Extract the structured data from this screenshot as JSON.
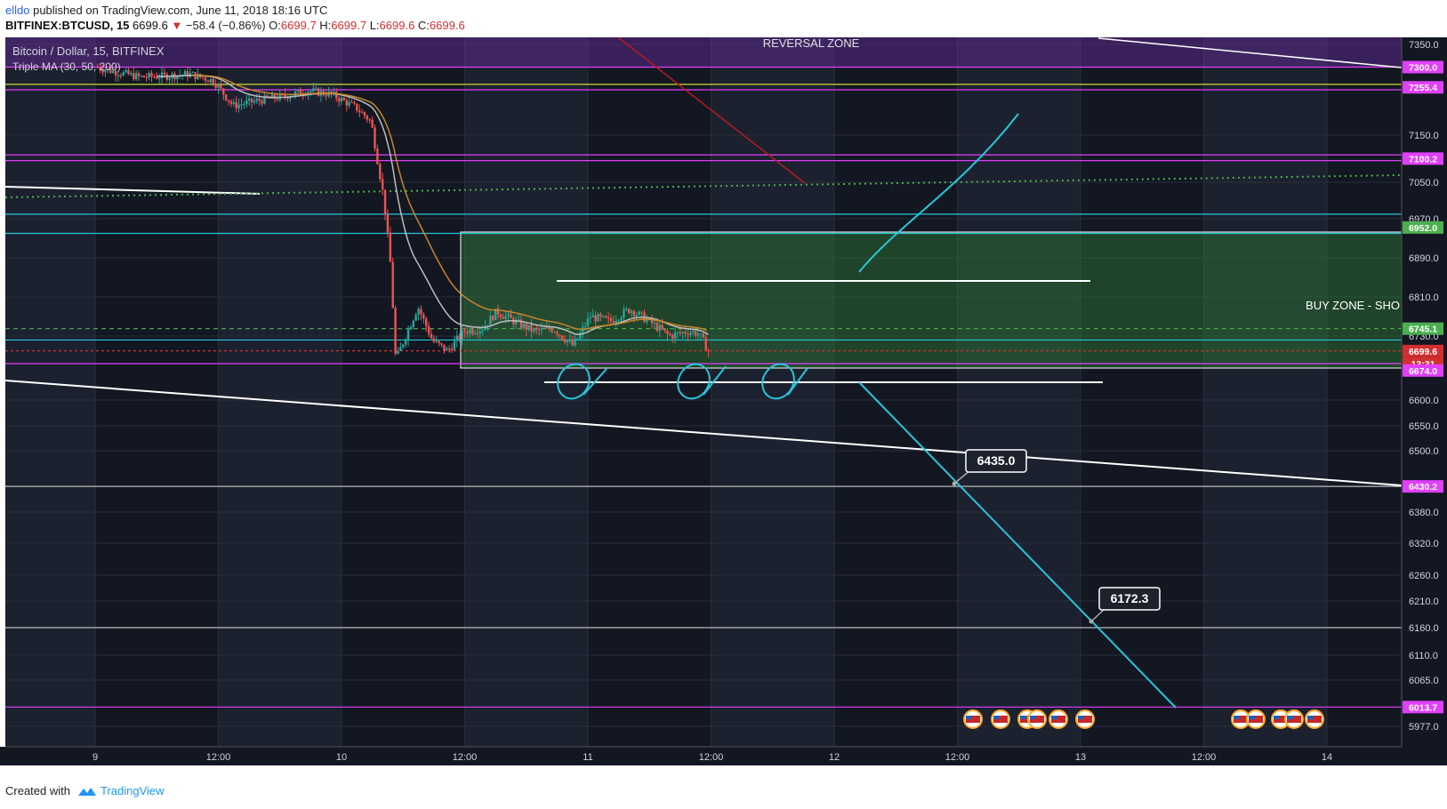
{
  "header": {
    "author": "elldo",
    "published_text": "published on TradingView.com, June 11, 2018 18:16 UTC",
    "symbol": "BITFINEX:BTCUSD, 15",
    "last": "6699.6",
    "change": "−58.4 (−0.86%)",
    "o_label": "O:",
    "o": "6699.7",
    "h_label": "H:",
    "h": "6699.7",
    "l_label": "L:",
    "l": "6699.6",
    "c_label": "C:",
    "c": "6699.6"
  },
  "legend": {
    "title": "Bitcoin / Dollar, 15, BITFINEX",
    "indicator": "Triple MA (30, 50, 200)"
  },
  "footer": {
    "created_with": "Created with",
    "brand": "TradingView"
  },
  "colors": {
    "background": "#131722",
    "bull": "#26a69a",
    "bear": "#ef5350",
    "accent_magenta": "#e040fb",
    "accent_cyan": "#26c6da",
    "accent_green": "#1b5e20",
    "accent_red": "#d32f2f"
  },
  "chart_data": {
    "type": "candlestick",
    "title": "Bitcoin / Dollar, 15, BITFINEX",
    "x_ticks": [
      "9",
      "12:00",
      "10",
      "12:00",
      "11",
      "12:00",
      "12",
      "12:00",
      "13",
      "12:00",
      "14"
    ],
    "y_ticks": [
      7350,
      7150,
      7050,
      6970,
      6890,
      6810,
      6730,
      6600,
      6550,
      6500,
      6380,
      6320,
      6260,
      6210,
      6160,
      6110,
      6065,
      5977
    ],
    "y_range": [
      5960,
      7380
    ],
    "grid": true,
    "price_tags": [
      {
        "value": "7300.0",
        "price": 7300,
        "color": "#e040fb"
      },
      {
        "value": "7255.4",
        "price": 7255.4,
        "color": "#e040fb"
      },
      {
        "value": "7100.2",
        "price": 7100.2,
        "color": "#e040fb"
      },
      {
        "value": "6952.0",
        "price": 6952,
        "color": "#4caf50"
      },
      {
        "value": "6745.1",
        "price": 6745.1,
        "color": "#4caf50"
      },
      {
        "value": "6699.6",
        "price": 6699.6,
        "color": "#d32f2f"
      },
      {
        "value": "13:31",
        "price": 6674,
        "color": "#d32f2f"
      },
      {
        "value": "6674.0",
        "price": 6660,
        "color": "#e040fb"
      },
      {
        "value": "6430.2",
        "price": 6430.2,
        "color": "#e040fb"
      },
      {
        "value": "6013.7",
        "price": 6013.7,
        "color": "#e040fb"
      }
    ],
    "horizontal_levels": [
      {
        "price": 7300,
        "color": "#e040fb"
      },
      {
        "price": 7262,
        "color": "#cddc39"
      },
      {
        "price": 7250,
        "color": "#e040fb"
      },
      {
        "price": 7108,
        "color": "#e040fb"
      },
      {
        "price": 7096,
        "color": "#e040fb"
      },
      {
        "price": 6980,
        "color": "#26c6da"
      },
      {
        "price": 6940,
        "color": "#26c6da"
      },
      {
        "price": 6745.1,
        "color": "#4caf50"
      },
      {
        "price": 6722,
        "color": "#26c6da"
      },
      {
        "price": 6700,
        "color": "#d32f2f"
      },
      {
        "price": 6674,
        "color": "#e040fb"
      },
      {
        "price": 6430.2,
        "color": "#bbbbbb"
      },
      {
        "price": 6160,
        "color": "#bbbbbb"
      },
      {
        "price": 6013.7,
        "color": "#e040fb"
      }
    ],
    "zones": [
      {
        "label": "REVERSAL ZONE",
        "from_price": 7380,
        "to_price": 7300
      },
      {
        "label": "BUY ZONE - SHO",
        "from_price": 6952,
        "to_price": 6674
      }
    ],
    "callouts": [
      {
        "label": "6435.0",
        "price": 6435.0
      },
      {
        "label": "6172.3",
        "price": 6172.3
      }
    ],
    "price_path": [
      [
        0,
        7300
      ],
      [
        0.08,
        7290
      ],
      [
        0.18,
        7278
      ],
      [
        0.28,
        7280
      ],
      [
        0.38,
        7285
      ],
      [
        0.48,
        7270
      ],
      [
        0.56,
        7215
      ],
      [
        0.66,
        7226
      ],
      [
        0.76,
        7235
      ],
      [
        0.86,
        7248
      ],
      [
        0.96,
        7240
      ],
      [
        1.06,
        7210
      ],
      [
        1.12,
        7180
      ],
      [
        1.17,
        7020
      ],
      [
        1.2,
        6870
      ],
      [
        1.22,
        6680
      ],
      [
        1.26,
        6730
      ],
      [
        1.31,
        6790
      ],
      [
        1.37,
        6720
      ],
      [
        1.43,
        6700
      ],
      [
        1.5,
        6740
      ],
      [
        1.57,
        6745
      ],
      [
        1.63,
        6780
      ],
      [
        1.7,
        6760
      ],
      [
        1.78,
        6740
      ],
      [
        1.86,
        6745
      ],
      [
        1.94,
        6710
      ],
      [
        2.01,
        6770
      ],
      [
        2.09,
        6760
      ],
      [
        2.17,
        6785
      ],
      [
        2.25,
        6760
      ],
      [
        2.33,
        6730
      ],
      [
        2.41,
        6740
      ],
      [
        2.45,
        6735
      ],
      [
        2.49,
        6700
      ]
    ]
  }
}
